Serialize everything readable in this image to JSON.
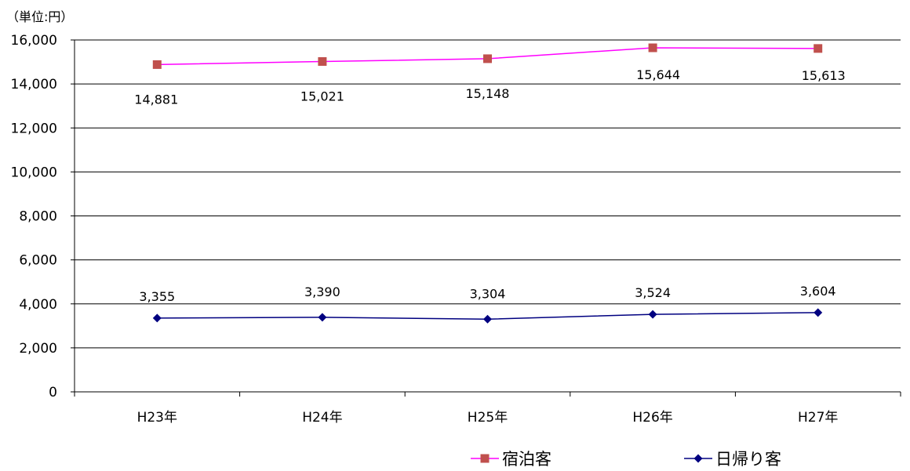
{
  "unit_label": "（単位:円）",
  "legend": {
    "items": [
      {
        "label": "宿泊客",
        "color": "#ff00ff",
        "marker_color": "#c0504d",
        "marker": "square"
      },
      {
        "label": "日帰り客",
        "color": "#000080",
        "marker_color": "#000080",
        "marker": "diamond"
      }
    ]
  },
  "chart_data": {
    "type": "line",
    "categories": [
      "H23年",
      "H24年",
      "H25年",
      "H26年",
      "H27年"
    ],
    "ylim": [
      0,
      16000
    ],
    "yticks": [
      0,
      2000,
      4000,
      6000,
      8000,
      10000,
      12000,
      14000,
      16000
    ],
    "ytick_labels": [
      "0",
      "2,000",
      "4,000",
      "6,000",
      "8,000",
      "10,000",
      "12,000",
      "14,000",
      "16,000"
    ],
    "grid": true,
    "legend_position": "bottom-right",
    "series": [
      {
        "name": "宿泊客",
        "values": [
          14881,
          15021,
          15148,
          15644,
          15613
        ],
        "labels": [
          "14,881",
          "15,021",
          "15,148",
          "15,644",
          "15,613"
        ],
        "color": "#ff00ff",
        "marker_color": "#c0504d",
        "marker": "square",
        "label_position": "below"
      },
      {
        "name": "日帰り客",
        "values": [
          3355,
          3390,
          3304,
          3524,
          3604
        ],
        "labels": [
          "3,355",
          "3,390",
          "3,304",
          "3,524",
          "3,604"
        ],
        "color": "#000080",
        "marker_color": "#000080",
        "marker": "diamond",
        "label_position": "above"
      }
    ]
  }
}
